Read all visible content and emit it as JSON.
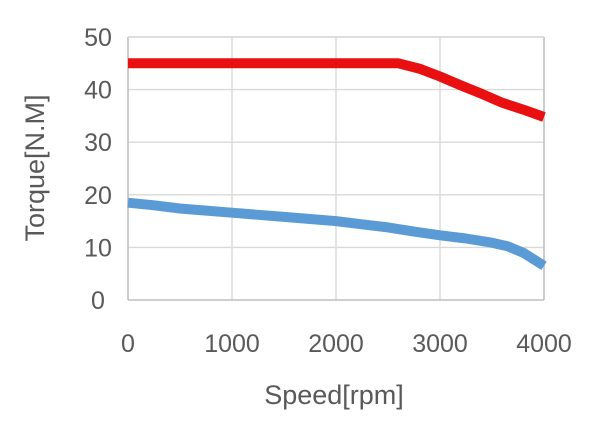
{
  "chart_data": {
    "type": "line",
    "title": "",
    "xlabel": "Speed[rpm]",
    "ylabel": "Torque[N.M]",
    "xlim": [
      0,
      4000
    ],
    "ylim": [
      0,
      50
    ],
    "x_ticks": [
      "0",
      "1000",
      "2000",
      "3000",
      "4000"
    ],
    "y_ticks": [
      "0",
      "10",
      "20",
      "30",
      "40",
      "50"
    ],
    "grid": true,
    "legend": "none",
    "series": [
      {
        "color": "#e81010",
        "points": [
          [
            0,
            45
          ],
          [
            500,
            45
          ],
          [
            1000,
            45
          ],
          [
            1500,
            45
          ],
          [
            2000,
            45
          ],
          [
            2400,
            45
          ],
          [
            2600,
            45
          ],
          [
            2800,
            44
          ],
          [
            3000,
            42.5
          ],
          [
            3200,
            40.8
          ],
          [
            3400,
            39.2
          ],
          [
            3600,
            37.5
          ],
          [
            3800,
            36.2
          ],
          [
            4000,
            34.8
          ]
        ]
      },
      {
        "color": "#5b9bd5",
        "points": [
          [
            0,
            18.5
          ],
          [
            250,
            18
          ],
          [
            500,
            17.4
          ],
          [
            750,
            17
          ],
          [
            1000,
            16.6
          ],
          [
            1250,
            16.2
          ],
          [
            1500,
            15.8
          ],
          [
            1750,
            15.4
          ],
          [
            2000,
            15
          ],
          [
            2250,
            14.4
          ],
          [
            2500,
            13.8
          ],
          [
            2750,
            13
          ],
          [
            3000,
            12.3
          ],
          [
            3250,
            11.7
          ],
          [
            3500,
            10.9
          ],
          [
            3650,
            10.2
          ],
          [
            3800,
            9
          ],
          [
            4000,
            6.5
          ]
        ]
      }
    ]
  }
}
